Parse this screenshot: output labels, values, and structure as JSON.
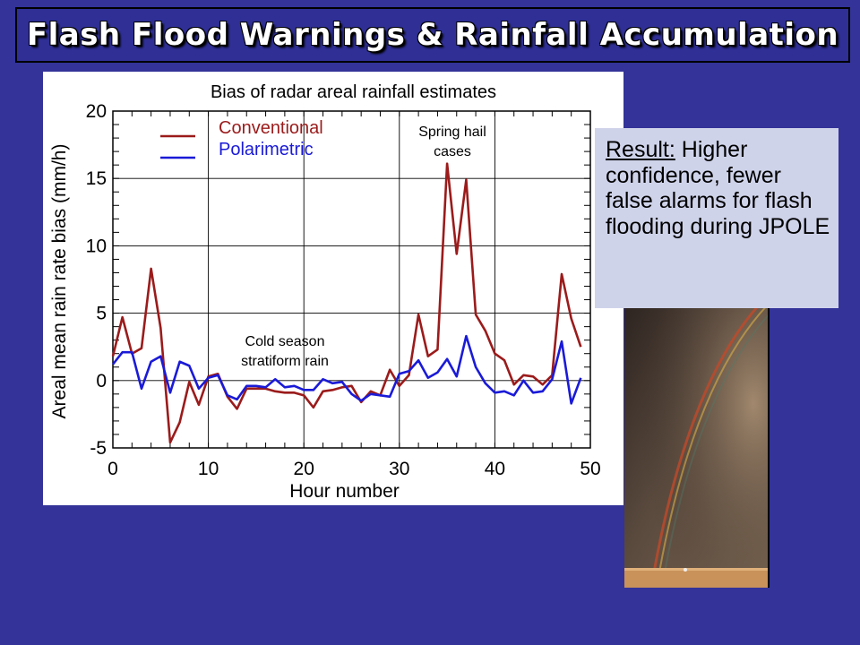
{
  "slide": {
    "title": "Flash Flood Warnings & Rainfall Accumulation",
    "result_label": "Result:",
    "result_text": " Higher confidence, fewer false alarms for flash flooding during JPOLE"
  },
  "colors": {
    "background": "#333399",
    "conventional": "#9b1b1b",
    "polarimetric": "#1a1ad8"
  },
  "chart_data": {
    "type": "line",
    "title": "Bias of radar areal rainfall estimates",
    "xlabel": "Hour number",
    "ylabel": "Areal mean rain rate bias (mm/h)",
    "xlim": [
      0,
      50
    ],
    "ylim": [
      -5,
      20
    ],
    "xticks": [
      0,
      10,
      20,
      30,
      40,
      50
    ],
    "yticks": [
      -5,
      0,
      5,
      10,
      15,
      20
    ],
    "grid": true,
    "legend_position": "top-left",
    "x": [
      0,
      1,
      2,
      3,
      4,
      5,
      6,
      7,
      8,
      9,
      10,
      11,
      12,
      13,
      14,
      15,
      16,
      17,
      18,
      19,
      20,
      21,
      22,
      23,
      24,
      25,
      26,
      27,
      28,
      29,
      30,
      31,
      32,
      33,
      34,
      35,
      36,
      37,
      38,
      39,
      40,
      41,
      42,
      43,
      44,
      45,
      46,
      47,
      48,
      49
    ],
    "series": [
      {
        "name": "Conventional",
        "values": [
          1.8,
          4.7,
          2.0,
          2.4,
          8.3,
          3.9,
          -4.6,
          -3.1,
          -0.1,
          -1.8,
          0.3,
          0.5,
          -1.2,
          -2.1,
          -0.6,
          -0.6,
          -0.6,
          -0.8,
          -0.9,
          -0.9,
          -1.1,
          -2.0,
          -0.8,
          -0.7,
          -0.5,
          -0.4,
          -1.6,
          -0.8,
          -1.1,
          0.8,
          -0.4,
          0.4,
          4.9,
          1.8,
          2.3,
          16.1,
          9.4,
          14.9,
          4.9,
          3.7,
          2.0,
          1.5,
          -0.3,
          0.4,
          0.3,
          -0.3,
          0.4,
          7.9,
          4.6,
          2.5
        ]
      },
      {
        "name": "Polarimetric",
        "values": [
          1.2,
          2.1,
          2.1,
          -0.6,
          1.4,
          1.8,
          -0.9,
          1.4,
          1.1,
          -0.6,
          0.2,
          0.4,
          -1.1,
          -1.4,
          -0.4,
          -0.4,
          -0.5,
          0.1,
          -0.5,
          -0.4,
          -0.7,
          -0.7,
          0.1,
          -0.2,
          -0.1,
          -1.0,
          -1.5,
          -1.0,
          -1.1,
          -1.2,
          0.5,
          0.7,
          1.5,
          0.2,
          0.6,
          1.6,
          0.3,
          3.3,
          1.0,
          -0.2,
          -0.9,
          -0.8,
          -1.1,
          0.0,
          -0.9,
          -0.8,
          0.1,
          2.9,
          -1.7,
          0.2
        ]
      }
    ],
    "annotations": [
      {
        "id": "spring",
        "lines": [
          "Spring hail",
          "cases"
        ]
      },
      {
        "id": "cold",
        "lines": [
          "Cold season",
          "stratiform rain"
        ]
      }
    ]
  }
}
